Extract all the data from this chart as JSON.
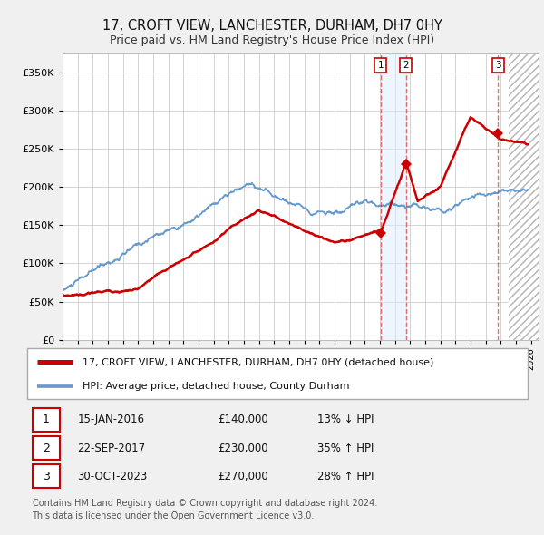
{
  "title": "17, CROFT VIEW, LANCHESTER, DURHAM, DH7 0HY",
  "subtitle": "Price paid vs. HM Land Registry's House Price Index (HPI)",
  "yticks": [
    0,
    50000,
    100000,
    150000,
    200000,
    250000,
    300000,
    350000
  ],
  "ylim": [
    0,
    375000
  ],
  "xlim_start": 1995.0,
  "xlim_end": 2026.5,
  "hatch_start": 2024.5,
  "sales": [
    {
      "date_num": 2016.04,
      "price": 140000,
      "label": "1"
    },
    {
      "date_num": 2017.73,
      "price": 230000,
      "label": "2"
    },
    {
      "date_num": 2023.83,
      "price": 270000,
      "label": "3"
    }
  ],
  "blue_band_x1": 2016.04,
  "blue_band_x2": 2017.73,
  "sale_table": [
    {
      "num": "1",
      "date": "15-JAN-2016",
      "price": "£140,000",
      "change": "13% ↓ HPI"
    },
    {
      "num": "2",
      "date": "22-SEP-2017",
      "price": "£230,000",
      "change": "35% ↑ HPI"
    },
    {
      "num": "3",
      "date": "30-OCT-2023",
      "price": "£270,000",
      "change": "28% ↑ HPI"
    }
  ],
  "legend_entries": [
    {
      "label": "17, CROFT VIEW, LANCHESTER, DURHAM, DH7 0HY (detached house)",
      "color": "#cc0000",
      "lw": 1.8
    },
    {
      "label": "HPI: Average price, detached house, County Durham",
      "color": "#6699cc",
      "lw": 1.3
    }
  ],
  "footer": "Contains HM Land Registry data © Crown copyright and database right 2024.\nThis data is licensed under the Open Government Licence v3.0.",
  "bg_color": "#f0f0f0",
  "plot_bg_color": "#ffffff",
  "grid_color": "#cccccc",
  "vline_color": "#dd3333",
  "vline_alpha": 0.7,
  "blue_band_color": "#ddeeff",
  "blue_band_alpha": 0.5,
  "hatch_color": "#cccccc",
  "title_fontsize": 10.5,
  "subtitle_fontsize": 9,
  "ytick_fontsize": 8,
  "xtick_fontsize": 7
}
